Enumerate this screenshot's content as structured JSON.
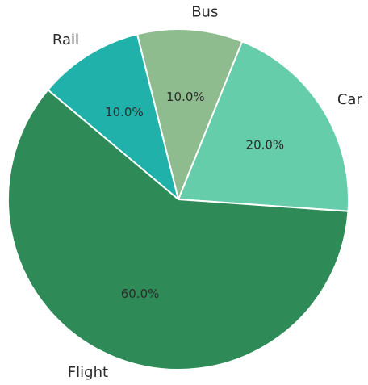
{
  "chart_data": {
    "type": "pie",
    "title": "",
    "categories": [
      "Car",
      "Bus",
      "Rail",
      "Flight"
    ],
    "values": [
      20,
      10,
      10,
      60
    ],
    "percent_labels": [
      "20.0%",
      "10.0%",
      "10.0%",
      "60.0%"
    ],
    "colors": [
      "#66cdaa",
      "#8fbc8f",
      "#20b2aa",
      "#2e8b57"
    ],
    "start_angle_deg": -4,
    "direction": "counterclockwise",
    "legend": "none"
  }
}
